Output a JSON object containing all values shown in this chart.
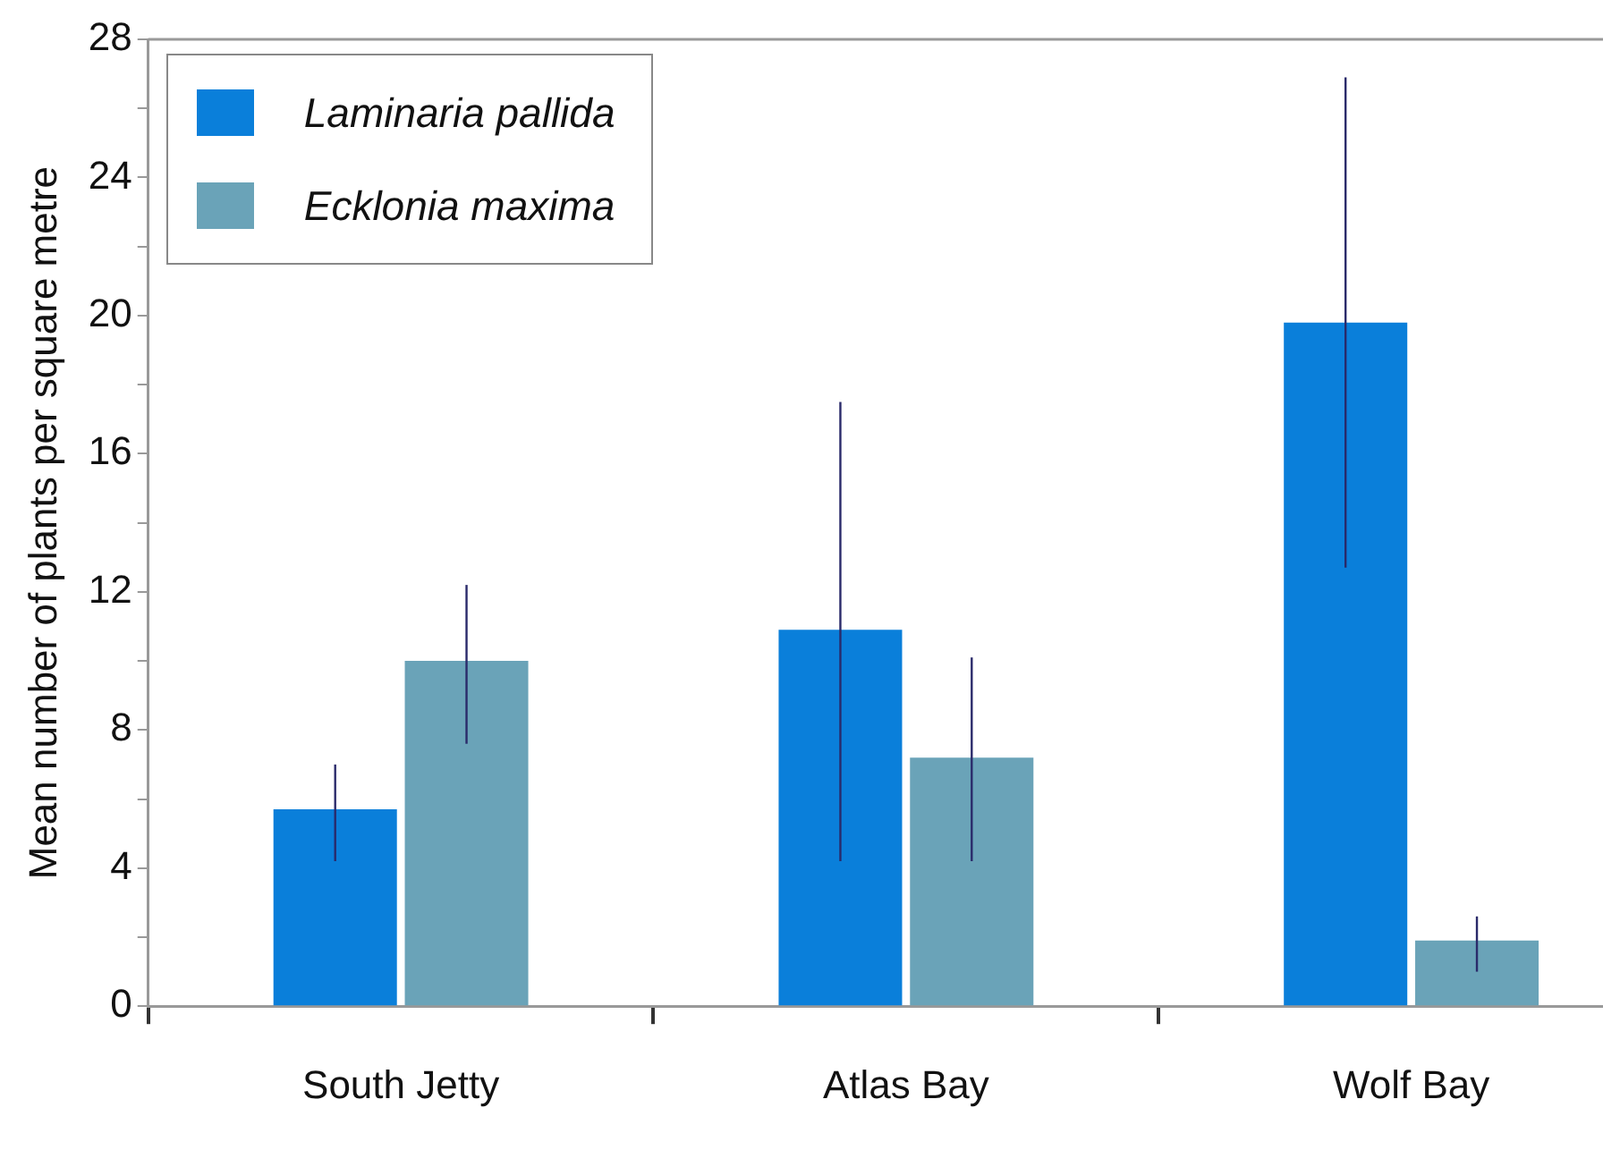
{
  "chart_data": {
    "type": "bar",
    "ylabel": "Mean number of plants per square metre",
    "categories": [
      "South Jetty",
      "Atlas Bay",
      "Wolf Bay"
    ],
    "series": [
      {
        "name": "Laminaria pallida",
        "color": "#0a7fda",
        "values": [
          5.7,
          10.9,
          19.8
        ],
        "errors": [
          [
            4.2,
            7.0
          ],
          [
            4.2,
            17.5
          ],
          [
            12.7,
            26.9
          ]
        ]
      },
      {
        "name": "Ecklonia maxima",
        "color": "#6aa3b8",
        "values": [
          10.0,
          7.2,
          1.9
        ],
        "errors": [
          [
            7.6,
            12.2
          ],
          [
            4.2,
            10.1
          ],
          [
            1.0,
            2.6
          ]
        ]
      }
    ],
    "ylim": [
      0,
      28
    ],
    "yticks": [
      0,
      {
        "value": 2,
        "label": null
      },
      4,
      {
        "value": 6,
        "label": null
      },
      8,
      {
        "value": 10,
        "label": null
      },
      12,
      {
        "value": 14,
        "label": null
      },
      16,
      {
        "value": 18,
        "label": null
      },
      20,
      {
        "value": 22,
        "label": null
      },
      24,
      {
        "value": 26,
        "label": null
      },
      28
    ],
    "grid": false,
    "legend": "top left"
  }
}
